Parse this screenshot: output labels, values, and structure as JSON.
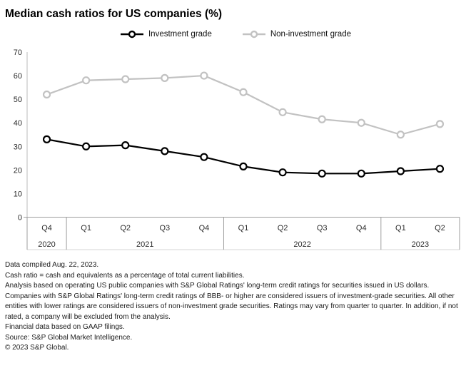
{
  "title": "Median cash ratios for US companies (%)",
  "legend": {
    "items": [
      {
        "label": "Investment grade",
        "color": "#000000"
      },
      {
        "label": "Non-investment grade",
        "color": "#c2c2c2"
      }
    ]
  },
  "chart_data": {
    "type": "line",
    "title": "Median cash ratios for US companies (%)",
    "categories": [
      "Q4 2020",
      "Q1 2021",
      "Q2 2021",
      "Q3 2021",
      "Q4 2021",
      "Q1 2022",
      "Q2 2022",
      "Q3 2022",
      "Q4 2022",
      "Q1 2023",
      "Q2 2023"
    ],
    "x_axis": {
      "quarter_labels": [
        "Q4",
        "Q1",
        "Q2",
        "Q3",
        "Q4",
        "Q1",
        "Q2",
        "Q3",
        "Q4",
        "Q1",
        "Q2"
      ],
      "year_groups": [
        {
          "label": "2020",
          "span": 1
        },
        {
          "label": "2021",
          "span": 4
        },
        {
          "label": "2022",
          "span": 4
        },
        {
          "label": "2023",
          "span": 2
        }
      ]
    },
    "y_axis": {
      "min": 0,
      "max": 70,
      "step": 10,
      "tick_labels": [
        "0",
        "10",
        "20",
        "30",
        "40",
        "50",
        "60",
        "70"
      ]
    },
    "series": [
      {
        "name": "Investment grade",
        "color": "#000000",
        "values": [
          33,
          30,
          30.5,
          28,
          25.5,
          21.5,
          19,
          18.5,
          18.5,
          19.5,
          20.5
        ]
      },
      {
        "name": "Non-investment grade",
        "color": "#c2c2c2",
        "values": [
          52,
          58,
          58.5,
          59,
          60,
          53,
          44.5,
          41.5,
          40,
          35,
          39.5
        ]
      }
    ],
    "legend_position": "top-center",
    "grid": false,
    "marker": "open-circle"
  },
  "footnotes": [
    "Data compiled Aug. 22, 2023.",
    "Cash ratio = cash and equivalents as a percentage of total current liabilities.",
    "Analysis based on operating US public companies with S&P Global Ratings' long-term credit ratings for securities issued in US dollars.",
    "Companies with S&P Global Ratings' long-term credit ratings of BBB- or higher are considered issuers of investment-grade securities. All other entities with lower ratings are considered issuers of non-investment grade securities. Ratings may vary from quarter to quarter. In addition, if not rated, a company will be excluded from the analysis.",
    "Financial data based on GAAP filings.",
    "Source: S&P Global Market Intelligence.",
    "© 2023 S&P Global."
  ],
  "colors": {
    "background": "#ffffff",
    "axis_line": "#c6c6c6",
    "band_border": "#9e9e9e",
    "band_bottom_border": "#d6d6d6",
    "axis_label_text": "#2b2b2b"
  }
}
